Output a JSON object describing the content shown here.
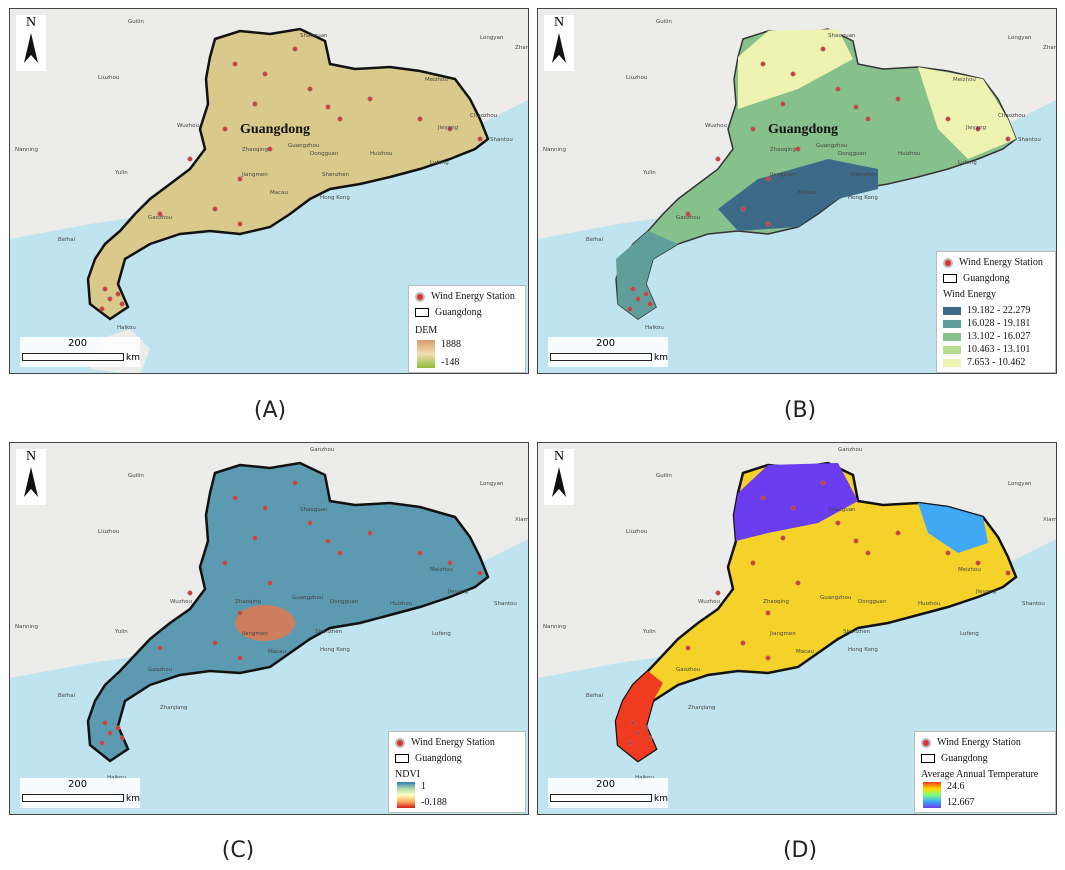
{
  "panels": [
    {
      "caption": "(A)",
      "title_on_map": "Guangdong",
      "scale_value": "200",
      "scale_unit": "km",
      "north": "N",
      "legend": {
        "station_label": "Wind Energy Station",
        "boundary_label": "Guangdong",
        "variable_title": "DEM",
        "ramp_high": "1888",
        "ramp_low": "-148",
        "ramp_colors": [
          "#d99a6c",
          "#f2dfb0",
          "#8fbc3a"
        ]
      },
      "fill_color": "#d9c98a"
    },
    {
      "caption": "(B)",
      "title_on_map": "Guangdong",
      "scale_value": "200",
      "scale_unit": "km",
      "north": "N",
      "legend": {
        "station_label": "Wind Energy Station",
        "boundary_label": "Guangdong",
        "variable_title": "Wind Energy",
        "classes": [
          {
            "label": "19.182 - 22.279",
            "color": "#3e6a8a"
          },
          {
            "label": "16.028 - 19.181",
            "color": "#5f9e9a"
          },
          {
            "label": "13.102 - 16.027",
            "color": "#86c08a"
          },
          {
            "label": "10.463 - 13.101",
            "color": "#b5dc8f"
          },
          {
            "label": "7.653 - 10.462",
            "color": "#eef3b2"
          }
        ]
      },
      "fill_color": "#86c08a"
    },
    {
      "caption": "(C)",
      "scale_value": "200",
      "scale_unit": "km",
      "north": "N",
      "legend": {
        "station_label": "Wind Energy Station",
        "boundary_label": "Guangdong",
        "variable_title": "NDVI",
        "ramp_high": "1",
        "ramp_low": "-0.188",
        "ramp_colors": [
          "#2c7bb6",
          "#abd9a9",
          "#ffffbf",
          "#fdae61",
          "#d7191c"
        ]
      },
      "fill_color": "#5b9ab0"
    },
    {
      "caption": "(D)",
      "scale_value": "200",
      "scale_unit": "km",
      "north": "N",
      "legend": {
        "station_label": "Wind Energy Station",
        "boundary_label": "Guangdong",
        "variable_title": "Average Annual Temperature",
        "ramp_high": "24.6",
        "ramp_low": "12.667",
        "ramp_colors": [
          "#f03b20",
          "#ffd700",
          "#7fff7f",
          "#3fa9f5",
          "#6a3df0"
        ]
      },
      "fill_color": "#f5d22a"
    }
  ],
  "place_labels": {
    "ab": [
      "Guilin",
      "Shaoguan",
      "Longyan",
      "Zhangzhou",
      "Liuzhou",
      "Meizhou",
      "Nanning",
      "Wuzhou",
      "Zhaoqing",
      "Guangzhou",
      "Dongguan",
      "Huizhou",
      "Shantou",
      "Jieyang",
      "Chaozhou",
      "Yulin",
      "Jiangmen",
      "Shenzhen",
      "Lufeng",
      "Macau",
      "Hong Kong",
      "Gaozhou",
      "Beihai",
      "Haikou"
    ],
    "cd": [
      "Ganzhou",
      "Guilin",
      "Longyan",
      "Xiamen",
      "Liuzhou",
      "Shaoguan",
      "Meizhou",
      "Nanning",
      "Wuzhou",
      "Zhaoqing",
      "Guangzhou",
      "Dongguan",
      "Huizhou",
      "Shantou",
      "Jieyang",
      "Yulin",
      "Jiangmen",
      "Shenzhen",
      "Lufeng",
      "Macau",
      "Hong Kong",
      "Gaozhou",
      "Zhanjiang",
      "Beihai",
      "Haikou"
    ]
  },
  "colors": {
    "land": "#ececea",
    "sea": "#bfe3ef",
    "boundary": "#111111",
    "station": "#d33a3a"
  }
}
